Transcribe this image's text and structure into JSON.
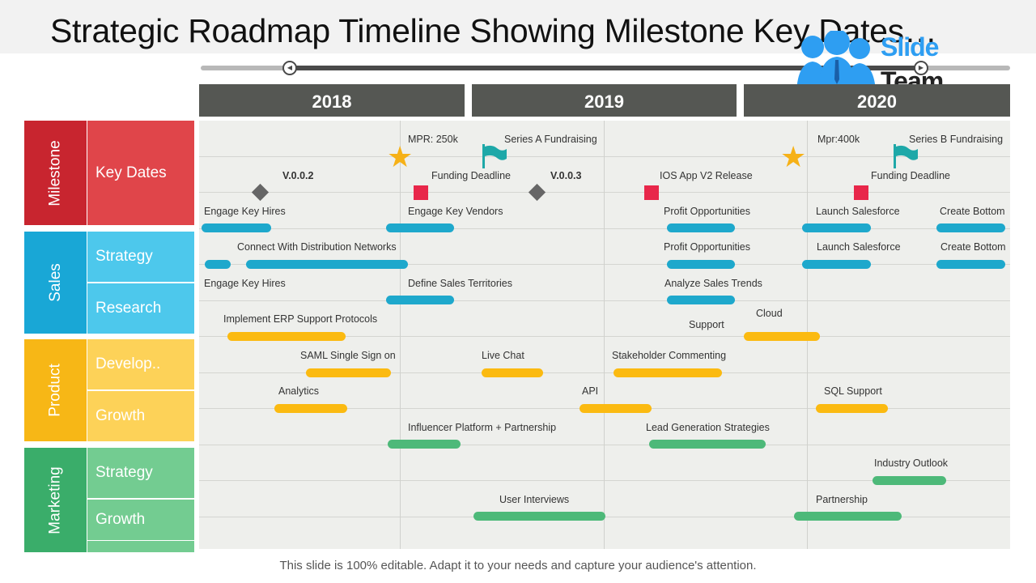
{
  "title": "Strategic Roadmap Timeline Showing Milestone Key Dates…",
  "logo": {
    "line1": "Slide",
    "line2": "Team"
  },
  "years": [
    "2018",
    "2019",
    "2020"
  ],
  "categories": {
    "milestone": {
      "label": "Milestone",
      "color": "#c8252f",
      "sub": [
        {
          "label": "Key Dates",
          "color": "#e0454a"
        }
      ]
    },
    "sales": {
      "label": "Sales",
      "color": "#19a7d6",
      "sub": [
        {
          "label": "Strategy",
          "color": "#4dc8ec"
        },
        {
          "label": "Research",
          "color": "#4dc8ec"
        }
      ]
    },
    "product": {
      "label": "Product",
      "color": "#f7b716",
      "sub": [
        {
          "label": "Develop..",
          "color": "#fdd258"
        },
        {
          "label": "Growth",
          "color": "#fdd258"
        }
      ]
    },
    "marketing": {
      "label": "Marketing",
      "color": "#3aad6a",
      "sub": [
        {
          "label": "Strategy",
          "color": "#73cc91"
        },
        {
          "label": "Growth",
          "color": "#73cc91"
        }
      ]
    }
  },
  "milestones": {
    "v002": "V.0.0.2",
    "mpr250": "MPR: 250k",
    "seriesA": "Series A Fundraising",
    "funding1": "Funding Deadline",
    "v003": "V.0.0.3",
    "ios": "IOS App V2 Release",
    "mpr400": "Mpr:400k",
    "seriesB": "Series B Fundraising",
    "funding2": "Funding Deadline"
  },
  "tasks": {
    "t1": "Engage Key Hires",
    "t2": "Engage Key Vendors",
    "t3": "Profit Opportunities",
    "t4": "Launch Salesforce",
    "t5": "Create Bottom",
    "t6": "Connect With Distribution Networks",
    "t7": "Profit Opportunities",
    "t8": "Launch Salesforce",
    "t9": "Create Bottom",
    "t10": "Engage Key Hires",
    "t11": "Define Sales Territories",
    "t12": "Analyze  Sales Trends",
    "t13": "Implement ERP Support Protocols",
    "t14": "Cloud",
    "t15": "Support",
    "t16": "SAML  Single Sign on",
    "t17": "Live Chat",
    "t18": "Stakeholder Commenting",
    "t19": "Analytics",
    "t20": "API",
    "t21": "SQL Support",
    "t22": "Influencer Platform + Partnership",
    "t23": "Lead Generation Strategies",
    "t24": "Industry Outlook",
    "t25": "User Interviews",
    "t26": "Partnership"
  },
  "colors": {
    "blue": "#1ea8cc",
    "yellow": "#fbba11",
    "green": "#4db979",
    "year_header": "#555753"
  },
  "footer": "This slide is 100% editable. Adapt it to your needs and capture your audience's attention."
}
